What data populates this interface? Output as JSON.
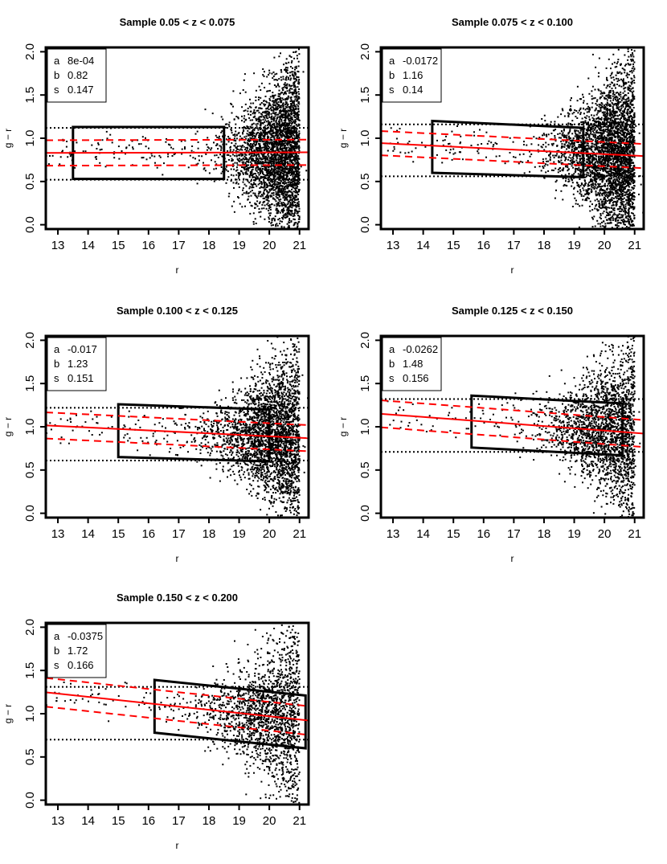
{
  "chart_data": [
    {
      "type": "scatter",
      "title": "Sample 0.05 < z < 0.075",
      "xlabel": "r",
      "ylabel": "g − r",
      "xlim": [
        12.6,
        21.3
      ],
      "ylim": [
        -0.05,
        2.05
      ],
      "xticks": [
        "13",
        "14",
        "15",
        "16",
        "17",
        "18",
        "19",
        "20",
        "21"
      ],
      "yticks": [
        "0.0",
        "0.5",
        "1.0",
        "1.5",
        "2.0"
      ],
      "legend": {
        "position": "top-left",
        "labels": [
          "a",
          "b",
          "s"
        ],
        "values": [
          "8e-04",
          "0.82",
          "0.147"
        ]
      },
      "a": 0.0008,
      "b": 0.82,
      "s": 0.147,
      "selection_box": {
        "r_min": 13.5,
        "r_max": 18.5,
        "top": [
          1.13,
          1.13
        ],
        "bottom": [
          0.53,
          0.53
        ]
      },
      "dotted_lines": [
        1.12,
        0.52
      ],
      "density": {
        "peak_r": 21.0,
        "spread_r": 1.0,
        "count": 3400
      }
    },
    {
      "type": "scatter",
      "title": "Sample 0.075 < z < 0.100",
      "xlabel": "r",
      "ylabel": "g − r",
      "xlim": [
        12.6,
        21.3
      ],
      "ylim": [
        -0.05,
        2.05
      ],
      "xticks": [
        "13",
        "14",
        "15",
        "16",
        "17",
        "18",
        "19",
        "20",
        "21"
      ],
      "yticks": [
        "0.0",
        "0.5",
        "1.0",
        "1.5",
        "2.0"
      ],
      "legend": {
        "position": "top-left",
        "labels": [
          "a",
          "b",
          "s"
        ],
        "values": [
          "-0.0172",
          "1.16",
          "0.14"
        ]
      },
      "a": -0.0172,
      "b": 1.16,
      "s": 0.14,
      "selection_box": {
        "r_min": 14.3,
        "r_max": 19.3,
        "top": [
          1.2,
          1.12
        ],
        "bottom": [
          0.6,
          0.55
        ]
      },
      "dotted_lines": [
        1.16,
        0.56
      ],
      "density": {
        "peak_r": 21.0,
        "spread_r": 1.1,
        "count": 3600
      }
    },
    {
      "type": "scatter",
      "title": "Sample 0.100 < z < 0.125",
      "xlabel": "r",
      "ylabel": "g − r",
      "xlim": [
        12.6,
        21.3
      ],
      "ylim": [
        -0.05,
        2.05
      ],
      "xticks": [
        "13",
        "14",
        "15",
        "16",
        "17",
        "18",
        "19",
        "20",
        "21"
      ],
      "yticks": [
        "0.0",
        "0.5",
        "1.0",
        "1.5",
        "2.0"
      ],
      "legend": {
        "position": "top-left",
        "labels": [
          "a",
          "b",
          "s"
        ],
        "values": [
          "-0.017",
          "1.23",
          "0.151"
        ]
      },
      "a": -0.017,
      "b": 1.23,
      "s": 0.151,
      "selection_box": {
        "r_min": 15.0,
        "r_max": 20.0,
        "top": [
          1.26,
          1.2
        ],
        "bottom": [
          0.65,
          0.6
        ]
      },
      "dotted_lines": [
        1.22,
        0.61
      ],
      "density": {
        "peak_r": 21.0,
        "spread_r": 1.3,
        "count": 2900
      }
    },
    {
      "type": "scatter",
      "title": "Sample 0.125 < z < 0.150",
      "xlabel": "r",
      "ylabel": "g − r",
      "xlim": [
        12.6,
        21.3
      ],
      "ylim": [
        -0.05,
        2.05
      ],
      "xticks": [
        "13",
        "14",
        "15",
        "16",
        "17",
        "18",
        "19",
        "20",
        "21"
      ],
      "yticks": [
        "0.0",
        "0.5",
        "1.0",
        "1.5",
        "2.0"
      ],
      "legend": {
        "position": "top-left",
        "labels": [
          "a",
          "b",
          "s"
        ],
        "values": [
          "-0.0262",
          "1.48",
          "0.156"
        ]
      },
      "a": -0.0262,
      "b": 1.48,
      "s": 0.156,
      "selection_box": {
        "r_min": 15.6,
        "r_max": 20.6,
        "top": [
          1.36,
          1.27
        ],
        "bottom": [
          0.76,
          0.67
        ]
      },
      "dotted_lines": [
        1.32,
        0.71
      ],
      "density": {
        "peak_r": 21.0,
        "spread_r": 1.3,
        "count": 2200
      }
    },
    {
      "type": "scatter",
      "title": "Sample 0.150 < z < 0.200",
      "xlabel": "r",
      "ylabel": "g − r",
      "xlim": [
        12.6,
        21.3
      ],
      "ylim": [
        -0.05,
        2.05
      ],
      "xticks": [
        "13",
        "14",
        "15",
        "16",
        "17",
        "18",
        "19",
        "20",
        "21"
      ],
      "yticks": [
        "0.0",
        "0.5",
        "1.0",
        "1.5",
        "2.0"
      ],
      "legend": {
        "position": "top-left",
        "labels": [
          "a",
          "b",
          "s"
        ],
        "values": [
          "-0.0375",
          "1.72",
          "0.166"
        ]
      },
      "a": -0.0375,
      "b": 1.72,
      "s": 0.166,
      "selection_box": {
        "r_min": 16.2,
        "r_max": 21.2,
        "top": [
          1.39,
          1.21
        ],
        "bottom": [
          0.78,
          0.6
        ]
      },
      "dotted_lines": [
        1.31,
        0.7
      ],
      "density": {
        "peak_r": 21.0,
        "spread_r": 1.4,
        "count": 1800
      }
    }
  ],
  "colors": {
    "fit": "#ff0000",
    "box": "#000000",
    "points": "#000000"
  }
}
